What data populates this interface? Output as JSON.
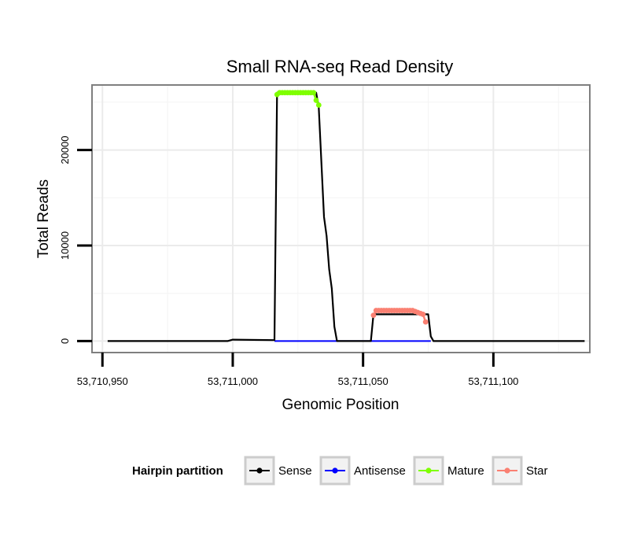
{
  "chart_data": {
    "type": "line",
    "title": "Small RNA-seq Read Density",
    "xlabel": "Genomic Position",
    "ylabel": "Total Reads",
    "xlim": [
      53710946,
      53711137
    ],
    "ylim": [
      -1200,
      26800
    ],
    "x_ticks": [
      53710950,
      53711000,
      53711050,
      53711100
    ],
    "x_tick_labels": [
      "53,710,950",
      "53,711,000",
      "53,711,050",
      "53,711,100"
    ],
    "y_ticks": [
      0,
      10000,
      20000
    ],
    "y_tick_labels": [
      "0",
      "10000",
      "20000"
    ],
    "grid": true,
    "legend": {
      "title": "Hairpin partition",
      "position": "bottom",
      "items": [
        {
          "name": "Sense",
          "color": "#000000"
        },
        {
          "name": "Antisense",
          "color": "#0000ff"
        },
        {
          "name": "Mature",
          "color": "#7fff00"
        },
        {
          "name": "Star",
          "color": "#fa8072"
        }
      ]
    },
    "series": [
      {
        "name": "Sense",
        "color": "#000000",
        "points": [
          [
            53710952,
            0
          ],
          [
            53710998,
            0
          ],
          [
            53711000,
            150
          ],
          [
            53711016,
            100
          ],
          [
            53711017,
            26000
          ],
          [
            53711032,
            26000
          ],
          [
            53711033,
            24500
          ],
          [
            53711035,
            13000
          ],
          [
            53711036,
            11000
          ],
          [
            53711037,
            7500
          ],
          [
            53711038,
            5500
          ],
          [
            53711039,
            1500
          ],
          [
            53711040,
            0
          ],
          [
            53711053,
            0
          ],
          [
            53711054,
            2800
          ],
          [
            53711075,
            2800
          ],
          [
            53711076,
            500
          ],
          [
            53711077,
            0
          ],
          [
            53711135,
            0
          ]
        ]
      },
      {
        "name": "Antisense",
        "color": "#0000ff",
        "points": [
          [
            53711016,
            0
          ],
          [
            53711040,
            0
          ],
          [
            53711052,
            0
          ],
          [
            53711076,
            0
          ]
        ]
      },
      {
        "name": "Mature",
        "color": "#7fff00",
        "points": [
          [
            53711017,
            25800
          ],
          [
            53711018,
            26000
          ],
          [
            53711019,
            26000
          ],
          [
            53711020,
            26000
          ],
          [
            53711021,
            26000
          ],
          [
            53711022,
            26000
          ],
          [
            53711023,
            26000
          ],
          [
            53711024,
            26000
          ],
          [
            53711025,
            26000
          ],
          [
            53711026,
            26000
          ],
          [
            53711027,
            26000
          ],
          [
            53711028,
            26000
          ],
          [
            53711029,
            26000
          ],
          [
            53711030,
            26000
          ],
          [
            53711031,
            26000
          ],
          [
            53711032,
            25200
          ],
          [
            53711033,
            24700
          ]
        ]
      },
      {
        "name": "Star",
        "color": "#fa8072",
        "points": [
          [
            53711054,
            2700
          ],
          [
            53711055,
            3200
          ],
          [
            53711056,
            3200
          ],
          [
            53711057,
            3200
          ],
          [
            53711058,
            3200
          ],
          [
            53711059,
            3200
          ],
          [
            53711060,
            3200
          ],
          [
            53711061,
            3200
          ],
          [
            53711062,
            3200
          ],
          [
            53711063,
            3200
          ],
          [
            53711064,
            3200
          ],
          [
            53711065,
            3200
          ],
          [
            53711066,
            3200
          ],
          [
            53711067,
            3200
          ],
          [
            53711068,
            3200
          ],
          [
            53711069,
            3200
          ],
          [
            53711070,
            3100
          ],
          [
            53711071,
            3000
          ],
          [
            53711072,
            2900
          ],
          [
            53711073,
            2800
          ],
          [
            53711074,
            2000
          ]
        ]
      }
    ]
  }
}
